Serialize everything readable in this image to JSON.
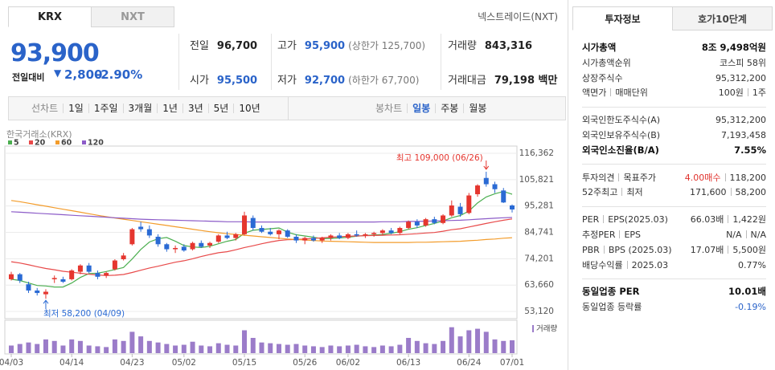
{
  "header": {
    "tabs": [
      "KRX",
      "NXT"
    ],
    "market_link": "넥스트레이드(NXT)"
  },
  "quote": {
    "price": "93,900",
    "change_label": "전일대비",
    "change": "2,800",
    "change_rate": "-2.90%"
  },
  "summary": [
    [
      {
        "label": "전일",
        "value": "96,700"
      },
      {
        "label": "고가",
        "value": "95,900",
        "note": "(상한가 125,700)"
      },
      {
        "label": "거래량",
        "value": "843,316"
      }
    ],
    [
      {
        "label": "시가",
        "value": "95,500"
      },
      {
        "label": "저가",
        "value": "92,700",
        "note": "(하한가 67,700)"
      },
      {
        "label": "거래대금",
        "value": "79,198 백만"
      }
    ]
  ],
  "toolbar": {
    "line_chart": "선차트",
    "periods": [
      "1일",
      "1주일",
      "3개월",
      "1년",
      "3년",
      "5년",
      "10년"
    ],
    "candle_chart": "봉차트",
    "candle_periods": [
      "일봉",
      "주봉",
      "월봉"
    ]
  },
  "chart_data": {
    "type": "candlestick",
    "source": "한국거래소(KRX)",
    "categories": [
      "04/03",
      null,
      null,
      null,
      null,
      null,
      null,
      "04/14",
      null,
      null,
      null,
      null,
      null,
      null,
      "04/23",
      null,
      null,
      null,
      null,
      null,
      "05/02",
      null,
      null,
      null,
      null,
      null,
      null,
      "05/15",
      null,
      null,
      null,
      null,
      null,
      null,
      "05/26",
      null,
      null,
      null,
      null,
      "06/02",
      null,
      null,
      null,
      null,
      null,
      null,
      "06/13",
      null,
      null,
      null,
      null,
      null,
      null,
      "06/24",
      null,
      null,
      null,
      null,
      "07/01"
    ],
    "open": [
      66000,
      68000,
      64000,
      61500,
      60000,
      66000,
      66000,
      66000,
      69000,
      71500,
      68500,
      67500,
      70000,
      74000,
      80000,
      87000,
      86000,
      83000,
      80000,
      78000,
      79000,
      78000,
      80500,
      79500,
      81000,
      83500,
      82500,
      84000,
      90500,
      86500,
      85000,
      84000,
      85500,
      83000,
      81500,
      82500,
      81500,
      82500,
      83500,
      82500,
      84000,
      83500,
      84000,
      84500,
      85500,
      84500,
      86500,
      89000,
      87500,
      90000,
      88500,
      91500,
      95000,
      92500,
      100000,
      106500,
      104000,
      101500,
      95500
    ],
    "high": [
      69000,
      68500,
      65000,
      62500,
      62000,
      67500,
      67000,
      70000,
      72000,
      72500,
      69500,
      69000,
      74000,
      76500,
      86500,
      89000,
      87500,
      84000,
      80500,
      79500,
      80000,
      81000,
      81500,
      81000,
      84000,
      85000,
      84500,
      93000,
      91500,
      87500,
      86500,
      86000,
      86000,
      84000,
      83000,
      83500,
      83000,
      84000,
      84500,
      84500,
      85500,
      84500,
      85000,
      86000,
      86500,
      87000,
      89500,
      90000,
      90500,
      91000,
      92000,
      97500,
      96500,
      100500,
      104000,
      109000,
      105000,
      102500,
      95900
    ],
    "low": [
      65500,
      64500,
      60500,
      59500,
      58200,
      64500,
      64500,
      65500,
      68000,
      68500,
      66000,
      66500,
      69500,
      73500,
      79500,
      85000,
      82500,
      79000,
      77000,
      76500,
      77000,
      77500,
      78500,
      78500,
      80500,
      82000,
      81500,
      83500,
      85500,
      84500,
      83500,
      82000,
      82500,
      80500,
      80000,
      81000,
      80500,
      81500,
      82000,
      82000,
      83000,
      82500,
      83000,
      83500,
      84000,
      84000,
      86000,
      86500,
      87000,
      88000,
      88000,
      91000,
      91000,
      92000,
      99000,
      103000,
      100500,
      96500,
      92700
    ],
    "close": [
      68000,
      65500,
      61500,
      60500,
      61000,
      66500,
      65000,
      69500,
      71500,
      69000,
      67000,
      68500,
      73500,
      75500,
      86000,
      86000,
      83500,
      80000,
      78000,
      78500,
      77500,
      80500,
      79000,
      80500,
      83500,
      82500,
      84000,
      91500,
      86500,
      85000,
      84000,
      85500,
      83000,
      81500,
      82500,
      81500,
      82500,
      83500,
      82500,
      84000,
      83500,
      84000,
      84500,
      85500,
      84500,
      86500,
      89000,
      87500,
      90000,
      88500,
      91500,
      95500,
      92000,
      99500,
      103500,
      104000,
      102000,
      96700,
      93900
    ],
    "up_color": "#e5362f",
    "down_color": "#2a6ad4",
    "series": [
      {
        "name": "5",
        "color": "#4caf50",
        "values": [
          66000,
          65500,
          64500,
          63500,
          63300,
          62900,
          62900,
          64500,
          66700,
          68300,
          68400,
          69100,
          69900,
          70700,
          74100,
          77900,
          80900,
          82200,
          82700,
          81200,
          79500,
          78900,
          78700,
          79200,
          80200,
          81200,
          81900,
          84400,
          85600,
          85900,
          86200,
          86500,
          84800,
          83800,
          83300,
          82800,
          82200,
          82300,
          82500,
          82800,
          83200,
          83500,
          83700,
          83900,
          84400,
          85000,
          86000,
          86600,
          87500,
          88300,
          89300,
          90600,
          91500,
          93300,
          96500,
          98900,
          100200,
          101100,
          100000
        ]
      },
      {
        "name": "20",
        "color": "#e84a4a",
        "values": [
          73000,
          72500,
          71800,
          71000,
          70300,
          69800,
          69200,
          68800,
          68400,
          68000,
          67700,
          67500,
          67600,
          67900,
          68700,
          69600,
          70500,
          71200,
          72000,
          72800,
          73400,
          74200,
          75100,
          75900,
          76600,
          77000,
          77800,
          78700,
          79400,
          80200,
          80900,
          81500,
          81800,
          81900,
          82100,
          82300,
          82600,
          82800,
          83000,
          83200,
          83300,
          83400,
          83500,
          83600,
          83700,
          83800,
          84000,
          84200,
          84500,
          84700,
          85200,
          85800,
          86200,
          86900,
          87600,
          88300,
          89000,
          89600,
          90100
        ]
      },
      {
        "name": "60",
        "color": "#f39c2b",
        "values": [
          97500,
          97000,
          96400,
          95800,
          95200,
          94600,
          94000,
          93400,
          92800,
          92200,
          91600,
          91000,
          90500,
          90000,
          89500,
          89000,
          88500,
          88000,
          87500,
          87000,
          86500,
          86000,
          85500,
          85000,
          84600,
          84200,
          83900,
          83600,
          83300,
          83000,
          82700,
          82400,
          82100,
          81900,
          81700,
          81500,
          81300,
          81200,
          81100,
          81000,
          80900,
          80800,
          80700,
          80700,
          80700,
          80700,
          80700,
          80800,
          80800,
          80900,
          81000,
          81100,
          81200,
          81400,
          81600,
          81900,
          82100,
          82400,
          82600
        ]
      },
      {
        "name": "120",
        "color": "#8c5cc8",
        "values": [
          93000,
          92800,
          92600,
          92400,
          92200,
          92000,
          91800,
          91600,
          91400,
          91200,
          91000,
          90800,
          90600,
          90400,
          90200,
          90000,
          89900,
          89800,
          89700,
          89600,
          89500,
          89400,
          89300,
          89200,
          89100,
          89000,
          89000,
          89000,
          88900,
          88900,
          88900,
          88900,
          88900,
          88900,
          88900,
          88900,
          88900,
          88900,
          88900,
          88900,
          88900,
          88900,
          88900,
          89000,
          89000,
          89000,
          89100,
          89100,
          89200,
          89300,
          89400,
          89500,
          89600,
          89800,
          90000,
          90200,
          90400,
          90600,
          90700
        ]
      }
    ],
    "volume": {
      "name": "거래량",
      "color": "#9b7cc9",
      "ylim": [
        0,
        2000000
      ],
      "values": [
        500000,
        600000,
        700000,
        600000,
        900000,
        800000,
        500000,
        900000,
        800000,
        500000,
        450000,
        400000,
        900000,
        800000,
        1400000,
        1100000,
        800000,
        700000,
        600000,
        500000,
        550000,
        750000,
        500000,
        450000,
        650000,
        550000,
        500000,
        1500000,
        1000000,
        700000,
        650000,
        600000,
        550000,
        600000,
        500000,
        450000,
        400000,
        500000,
        450000,
        500000,
        550000,
        450000,
        400000,
        500000,
        450000,
        550000,
        1000000,
        800000,
        650000,
        600000,
        800000,
        1700000,
        1100000,
        1500000,
        1600000,
        1400000,
        900000,
        800000,
        843316
      ]
    },
    "ylim": [
      50250,
      119250
    ],
    "yticks": [
      {
        "value": 116362,
        "label": "116,362"
      },
      {
        "value": 105821,
        "label": "105,821"
      },
      {
        "value": 95281,
        "label": "95,281"
      },
      {
        "value": 84741,
        "label": "84,741"
      },
      {
        "value": 74201,
        "label": "74,201"
      },
      {
        "value": 63660,
        "label": "63,660"
      },
      {
        "value": 53120,
        "label": "53,120"
      }
    ],
    "grid": true,
    "annotations": {
      "high": "최고 109,000 (06/26)",
      "low": "최저 58,200 (04/09)"
    }
  },
  "info": {
    "tabs": [
      "투자정보",
      "호가10단계"
    ],
    "sections": [
      [
        {
          "labels": [
            "시가총액"
          ],
          "values": [
            "8조 9,498억원"
          ],
          "bold": true
        },
        {
          "labels": [
            "시가총액순위"
          ],
          "values": [
            "코스피 58위"
          ]
        },
        {
          "labels": [
            "상장주식수"
          ],
          "values": [
            "95,312,200"
          ]
        },
        {
          "labels": [
            "액면가",
            "매매단위"
          ],
          "values": [
            "100원",
            "1주"
          ]
        }
      ],
      [
        {
          "labels": [
            "외국인한도주식수(A)"
          ],
          "values": [
            "95,312,200"
          ]
        },
        {
          "labels": [
            "외국인보유주식수(B)"
          ],
          "values": [
            "7,193,458"
          ]
        },
        {
          "labels": [
            "외국인소진율(B/A)"
          ],
          "values": [
            "7.55%"
          ],
          "bold": true
        }
      ],
      [
        {
          "labels": [
            "투자의견",
            "목표주가"
          ],
          "values": [
            "4.00매수",
            "118,200"
          ],
          "value_colors": [
            "#e0312c",
            "#333333"
          ]
        },
        {
          "labels": [
            "52주최고",
            "최저"
          ],
          "values": [
            "171,600",
            "58,200"
          ]
        }
      ],
      [
        {
          "labels": [
            "PER",
            "EPS(2025.03)"
          ],
          "values": [
            "66.03배",
            "1,422원"
          ]
        },
        {
          "labels": [
            "추정PER",
            "EPS"
          ],
          "values": [
            "N/A",
            "N/A"
          ]
        },
        {
          "labels": [
            "PBR",
            "BPS (2025.03)"
          ],
          "values": [
            "17.07배",
            "5,500원"
          ]
        },
        {
          "labels": [
            "배당수익률",
            "2025.03"
          ],
          "values": [
            "0.77%"
          ]
        }
      ],
      [
        {
          "labels": [
            "동일업종 PER"
          ],
          "values": [
            "10.01배"
          ],
          "bold": true
        },
        {
          "labels": [
            "동일업종 등락률"
          ],
          "values": [
            "-0.19%"
          ],
          "value_colors": [
            "#2a63c9"
          ]
        }
      ]
    ]
  }
}
